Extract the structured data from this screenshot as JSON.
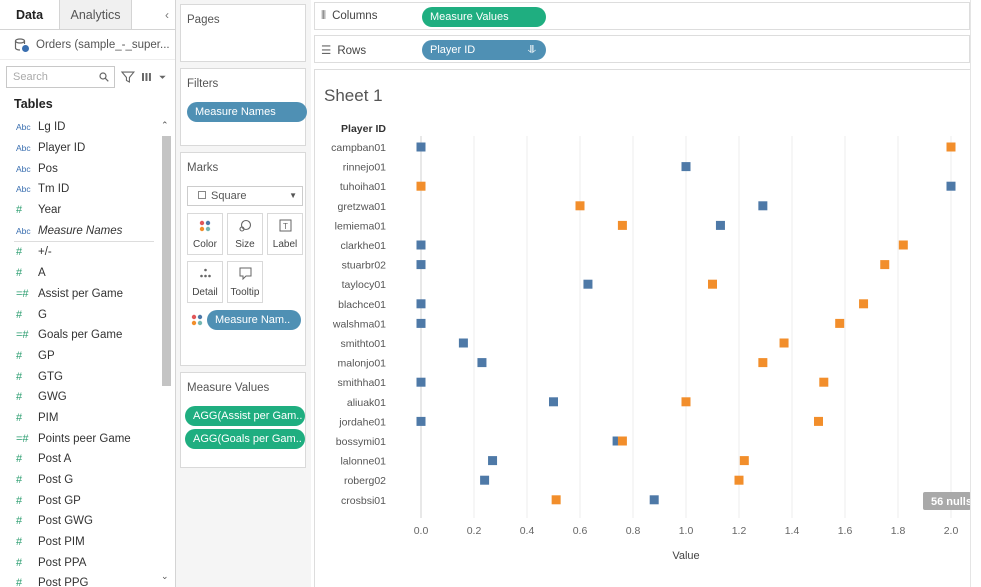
{
  "data_pane": {
    "tabs": [
      {
        "label": "Data"
      },
      {
        "label": "Analytics"
      }
    ],
    "collapse_glyph": "‹",
    "datasource": "Orders (sample_-_super...",
    "search_placeholder": "Search",
    "tables_header": "Tables",
    "fields_top": [
      {
        "type": "Abc",
        "label": "Lg ID"
      },
      {
        "type": "Abc",
        "label": "Player ID"
      },
      {
        "type": "Abc",
        "label": "Pos"
      },
      {
        "type": "Abc",
        "label": "Tm ID"
      },
      {
        "type": "#",
        "label": "Year"
      },
      {
        "type": "Abc",
        "label": "Measure Names",
        "italic": true
      }
    ],
    "fields_bottom": [
      {
        "type": "#",
        "label": "+/-"
      },
      {
        "type": "#",
        "label": "A"
      },
      {
        "type": "=#",
        "label": "Assist per Game"
      },
      {
        "type": "#",
        "label": "G"
      },
      {
        "type": "=#",
        "label": "Goals per Game"
      },
      {
        "type": "#",
        "label": "GP"
      },
      {
        "type": "#",
        "label": "GTG"
      },
      {
        "type": "#",
        "label": "GWG"
      },
      {
        "type": "#",
        "label": "PIM"
      },
      {
        "type": "=#",
        "label": "Points peer Game"
      },
      {
        "type": "#",
        "label": "Post A"
      },
      {
        "type": "#",
        "label": "Post G"
      },
      {
        "type": "#",
        "label": "Post GP"
      },
      {
        "type": "#",
        "label": "Post GWG"
      },
      {
        "type": "#",
        "label": "Post PIM"
      },
      {
        "type": "#",
        "label": "Post PPA"
      },
      {
        "type": "#",
        "label": "Post PPG"
      }
    ]
  },
  "shelves": {
    "pages_label": "Pages",
    "filters_label": "Filters",
    "filter_pill": "Measure Names",
    "marks_label": "Marks",
    "mark_type": "Square",
    "mark_buttons": [
      {
        "label": "Color",
        "icon": "color-dots-icon",
        "glyph": "⁘"
      },
      {
        "label": "Size",
        "icon": "size-icon",
        "glyph": "◌"
      },
      {
        "label": "Label",
        "icon": "label-icon",
        "glyph": "T"
      },
      {
        "label": "Detail",
        "icon": "detail-icon",
        "glyph": "⁖"
      },
      {
        "label": "Tooltip",
        "icon": "tooltip-icon",
        "glyph": "▭"
      }
    ],
    "color_pill": "Measure Nam..",
    "measure_values_label": "Measure Values",
    "measure_pills": [
      "AGG(Assist per Gam..",
      "AGG(Goals per Gam.."
    ]
  },
  "columns_shelf": {
    "label": "Columns",
    "pill": "Measure Values"
  },
  "rows_shelf": {
    "label": "Rows",
    "pill": "Player ID"
  },
  "sheet_title": "Sheet 1",
  "nulls_badge": "56 nulls",
  "colors": {
    "blue": "#4e79a7",
    "orange": "#f28e2b",
    "pill_blue": "#4f90b4",
    "pill_green": "#1fae80"
  },
  "chart_data": {
    "type": "scatter",
    "row_header": "Player ID",
    "xlabel": "Value",
    "xlim": [
      0,
      2.0
    ],
    "xticks": [
      "0.0",
      "0.2",
      "0.4",
      "0.6",
      "0.8",
      "1.0",
      "1.2",
      "1.4",
      "1.6",
      "1.8",
      "2.0"
    ],
    "categories": [
      "campban01",
      "rinnejo01",
      "tuhoiha01",
      "gretzwa01",
      "lemiema01",
      "clarkhe01",
      "stuarbr02",
      "taylocy01",
      "blachce01",
      "walshma01",
      "smithto01",
      "malonjo01",
      "smithha01",
      "aliuak01",
      "jordahe01",
      "bossymi01",
      "lalonne01",
      "roberg02",
      "crosbsi01"
    ],
    "series": [
      {
        "color": "#4e79a7",
        "values": [
          0.0,
          1.0,
          2.0,
          1.29,
          1.13,
          0.0,
          0.0,
          0.63,
          0.0,
          0.0,
          0.16,
          0.23,
          0.0,
          0.5,
          0.0,
          0.74,
          0.27,
          0.24,
          0.88
        ]
      },
      {
        "color": "#f28e2b",
        "values": [
          2.0,
          null,
          0.0,
          0.6,
          0.76,
          1.82,
          1.75,
          1.1,
          1.67,
          1.58,
          1.37,
          1.29,
          1.52,
          1.0,
          1.5,
          0.76,
          1.22,
          1.2,
          0.51
        ]
      }
    ]
  }
}
